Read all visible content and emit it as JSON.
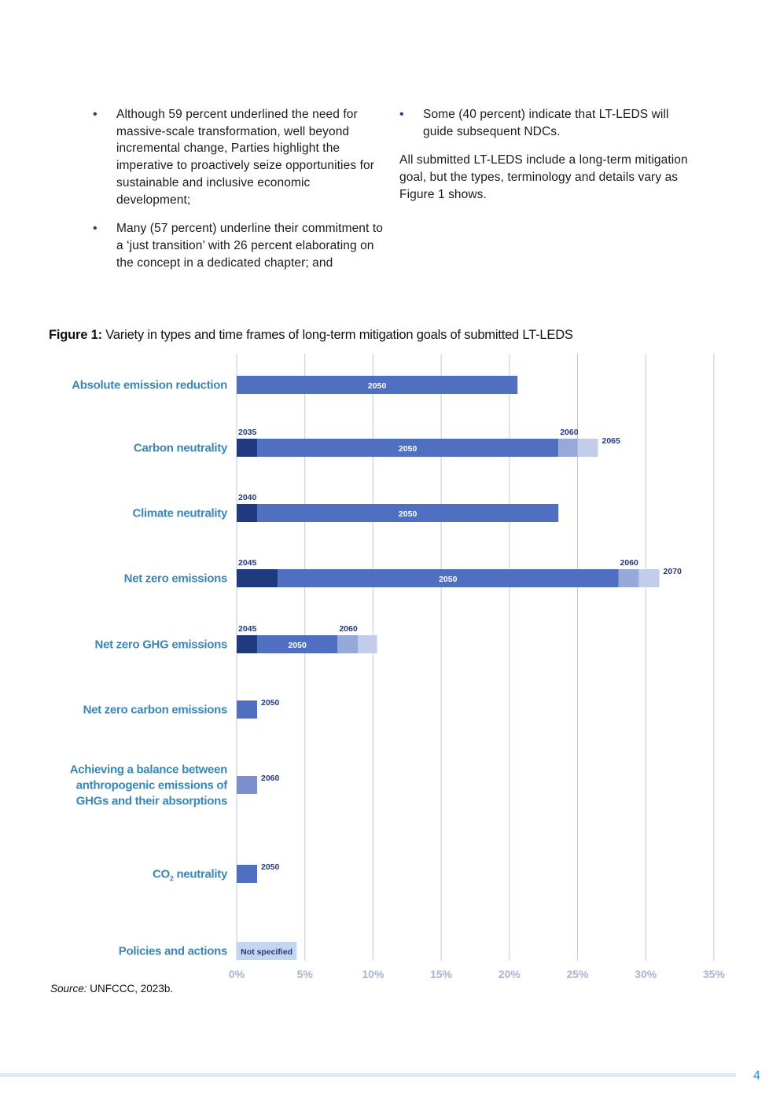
{
  "text": {
    "left_bullets": [
      "Although 59 percent underlined the need for massive-scale transformation, well beyond incremental change, Parties highlight the imperative to proactively seize opportunities for sustainable and inclusive economic development;",
      "Many (57 percent) underline their commitment to a ‘just transition’ with 26 percent elaborating on the concept in a dedicated chapter; and"
    ],
    "right_bullets": [
      "Some (40 percent) indicate that LT-LEDS will guide subsequent NDCs."
    ],
    "right_paragraph": "All submitted LT-LEDS include a long-term mitigation goal, but the types, terminology and details vary as Figure 1 shows.",
    "bullet_glyph": "•"
  },
  "figure": {
    "label": "Figure 1:",
    "caption": "Variety in types and time frames of long-term mitigation goals of submitted LT-LEDS",
    "source_label": "Source:",
    "source_text": "UNFCCC, 2023b."
  },
  "chart_data": {
    "type": "bar",
    "orientation": "horizontal",
    "stacked": true,
    "xlim": [
      0,
      35
    ],
    "xticks": [
      "0%",
      "5%",
      "10%",
      "15%",
      "20%",
      "25%",
      "30%",
      "35%"
    ],
    "grid": true,
    "categories": [
      "Absolute emission reduction",
      "Carbon neutrality",
      "Climate neutrality",
      "Net zero emissions",
      "Net zero GHG emissions",
      "Net zero carbon emissions",
      "Achieving a balance between anthropogenic emissions of GHGs and their absorptions",
      "CO2 neutrality",
      "Policies and actions"
    ],
    "rows": [
      {
        "category": "Absolute emission reduction",
        "segments": [
          {
            "year": "2050",
            "value": 20.6,
            "color": "#4f6fc0",
            "label_pos": "inside"
          }
        ]
      },
      {
        "category": "Carbon neutrality",
        "segments": [
          {
            "year": "2035",
            "value": 1.5,
            "color": "#1f3a7e",
            "label_pos": "above"
          },
          {
            "year": "2050",
            "value": 22.1,
            "color": "#4f6fc0",
            "label_pos": "inside"
          },
          {
            "year": "2060",
            "value": 1.4,
            "color": "#97a9d9",
            "label_pos": "above"
          },
          {
            "year": "2065",
            "value": 1.5,
            "color": "#c3cde9",
            "label_pos": "right"
          }
        ]
      },
      {
        "category": "Climate neutrality",
        "segments": [
          {
            "year": "2040",
            "value": 1.5,
            "color": "#1f3a7e",
            "label_pos": "above"
          },
          {
            "year": "2050",
            "value": 22.1,
            "color": "#4f6fc0",
            "label_pos": "inside"
          }
        ]
      },
      {
        "category": "Net zero emissions",
        "segments": [
          {
            "year": "2045",
            "value": 3.0,
            "color": "#1f3a7e",
            "label_pos": "above"
          },
          {
            "year": "2050",
            "value": 25.0,
            "color": "#4f6fc0",
            "label_pos": "inside"
          },
          {
            "year": "2060",
            "value": 1.5,
            "color": "#97a9d9",
            "label_pos": "above"
          },
          {
            "year": "2070",
            "value": 1.5,
            "color": "#c3cde9",
            "label_pos": "right"
          }
        ]
      },
      {
        "category": "Net zero GHG emissions",
        "segments": [
          {
            "year": "2045",
            "value": 1.5,
            "color": "#1f3a7e",
            "label_pos": "above"
          },
          {
            "year": "2050",
            "value": 5.9,
            "color": "#4f6fc0",
            "label_pos": "inside"
          },
          {
            "year": "2060",
            "value": 1.5,
            "color": "#97a9d9",
            "label_pos": "above"
          },
          {
            "year": "",
            "value": 1.4,
            "color": "#c3cde9",
            "label_pos": "none"
          }
        ]
      },
      {
        "category": "Net zero carbon emissions",
        "segments": [
          {
            "year": "2050",
            "value": 1.5,
            "color": "#4f6fc0",
            "label_pos": "right"
          }
        ]
      },
      {
        "category": "Achieving a balance between anthropogenic emissions of GHGs and their absorptions",
        "segments": [
          {
            "year": "2060",
            "value": 1.5,
            "color": "#7b8fcf",
            "label_pos": "right"
          }
        ]
      },
      {
        "category": "CO2 neutrality",
        "segments": [
          {
            "year": "2050",
            "value": 1.5,
            "color": "#4f6fc0",
            "label_pos": "right"
          }
        ]
      },
      {
        "category": "Policies and actions",
        "segments": [
          {
            "year": "Not specified",
            "value": 4.4,
            "color": "#c3d6ef",
            "label_pos": "inside-dark"
          }
        ]
      }
    ],
    "category_label_lines": [
      [
        "Absolute emission reduction"
      ],
      [
        "Carbon neutrality"
      ],
      [
        "Climate neutrality"
      ],
      [
        "Net zero emissions"
      ],
      [
        "Net zero GHG emissions"
      ],
      [
        "Net zero carbon emissions"
      ],
      [
        "Achieving a balance between",
        "anthropogenic emissions of",
        "GHGs and their absorptions"
      ],
      [
        "CO|2| neutrality"
      ],
      [
        "Policies and actions"
      ]
    ],
    "colors": {
      "axis_label": "#3a86b4",
      "tick_label": "#a8b3d6",
      "grid": "#c2c9de",
      "year_label": "#243a7a"
    }
  },
  "footer": {
    "page_number": "4"
  }
}
